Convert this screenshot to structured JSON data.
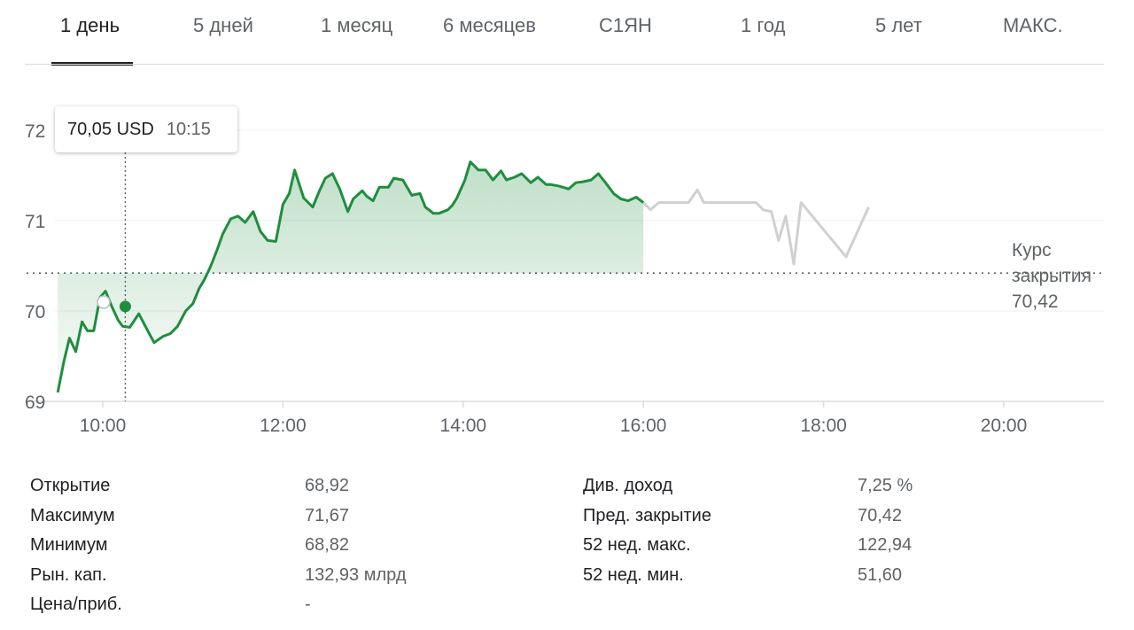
{
  "tabs": [
    {
      "label": "1 день",
      "active": true
    },
    {
      "label": "5 дней"
    },
    {
      "label": "1 месяц"
    },
    {
      "label": "6 месяцев"
    },
    {
      "label": "С1ЯН"
    },
    {
      "label": "1 год"
    },
    {
      "label": "5 лет"
    },
    {
      "label": "МАКС."
    }
  ],
  "tooltip": {
    "price": "70,05 USD",
    "time": "10:15"
  },
  "close_label": {
    "line1": "Курс",
    "line2": "закрытия",
    "value": "70,42"
  },
  "colors": {
    "up": "#1e8e3e",
    "after_hours": "#d0d0d0",
    "grid": "#e8eaed",
    "text_muted": "#5f6368"
  },
  "chart_data": {
    "type": "line",
    "title": "",
    "xlabel": "",
    "ylabel": "",
    "x_ticks": [
      "10:00",
      "12:00",
      "14:00",
      "16:00",
      "18:00",
      "20:00"
    ],
    "y_ticks": [
      69,
      70,
      71,
      72
    ],
    "ylim": [
      69,
      72.1
    ],
    "xlim_hours": [
      9.5,
      21.0
    ],
    "previous_close": 70.42,
    "hover": {
      "time": "10:15",
      "price": 70.05
    },
    "series": [
      {
        "segment": "regular",
        "x": [
          9.5,
          9.57,
          9.63,
          9.7,
          9.77,
          9.83,
          9.9,
          9.97,
          10.03,
          10.1,
          10.17,
          10.22,
          10.3,
          10.4,
          10.5,
          10.57,
          10.67,
          10.75,
          10.83,
          10.92,
          11.0,
          11.07,
          11.13,
          11.2,
          11.27,
          11.33,
          11.42,
          11.5,
          11.58,
          11.67,
          11.75,
          11.83,
          11.92,
          12.0,
          12.07,
          12.13,
          12.23,
          12.33,
          12.4,
          12.47,
          12.55,
          12.63,
          12.72,
          12.78,
          12.88,
          12.93,
          13.0,
          13.07,
          13.17,
          13.23,
          13.33,
          13.43,
          13.52,
          13.58,
          13.67,
          13.73,
          13.83,
          13.88,
          13.93,
          14.02,
          14.08,
          14.17,
          14.25,
          14.33,
          14.42,
          14.48,
          14.57,
          14.65,
          14.75,
          14.83,
          14.92,
          14.97,
          15.07,
          15.17,
          15.25,
          15.33,
          15.42,
          15.5,
          15.58,
          15.67,
          15.75,
          15.83,
          15.92,
          16.0
        ],
        "y": [
          69.1,
          69.45,
          69.7,
          69.55,
          69.88,
          69.78,
          69.78,
          70.15,
          70.22,
          70.05,
          69.9,
          69.83,
          69.82,
          69.97,
          69.78,
          69.65,
          69.72,
          69.75,
          69.83,
          70.0,
          70.08,
          70.25,
          70.35,
          70.5,
          70.68,
          70.85,
          71.02,
          71.05,
          70.98,
          71.1,
          70.88,
          70.78,
          70.77,
          71.18,
          71.3,
          71.56,
          71.25,
          71.15,
          71.32,
          71.47,
          71.52,
          71.35,
          71.1,
          71.24,
          71.33,
          71.27,
          71.22,
          71.37,
          71.37,
          71.47,
          71.45,
          71.28,
          71.3,
          71.15,
          71.08,
          71.08,
          71.12,
          71.17,
          71.25,
          71.45,
          71.65,
          71.56,
          71.56,
          71.45,
          71.55,
          71.45,
          71.48,
          71.52,
          71.42,
          71.48,
          71.4,
          71.4,
          71.38,
          71.35,
          71.42,
          71.43,
          71.45,
          71.52,
          71.42,
          71.3,
          71.24,
          71.22,
          71.26,
          71.2
        ]
      },
      {
        "segment": "after_hours",
        "x": [
          16.0,
          16.08,
          16.17,
          16.33,
          16.5,
          16.6,
          16.67,
          17.0,
          17.25,
          17.33,
          17.42,
          17.5,
          17.58,
          17.67,
          17.75,
          18.25,
          18.5
        ],
        "y": [
          71.2,
          71.12,
          71.2,
          71.2,
          71.2,
          71.34,
          71.2,
          71.2,
          71.2,
          71.12,
          71.1,
          70.78,
          71.05,
          70.52,
          71.2,
          70.6,
          71.15
        ]
      }
    ]
  },
  "stats": {
    "left": [
      {
        "label": "Открытие",
        "value": "68,92"
      },
      {
        "label": "Максимум",
        "value": "71,67"
      },
      {
        "label": "Минимум",
        "value": "68,82"
      },
      {
        "label": "Рын. кап.",
        "value": "132,93 млрд"
      },
      {
        "label": "Цена/приб.",
        "value": "-"
      }
    ],
    "right": [
      {
        "label": "Див. доход",
        "value": "7,25 %"
      },
      {
        "label": "Пред. закрытие",
        "value": "70,42"
      },
      {
        "label": "52 нед. макс.",
        "value": "122,94"
      },
      {
        "label": "52 нед. мин.",
        "value": "51,60"
      }
    ]
  }
}
